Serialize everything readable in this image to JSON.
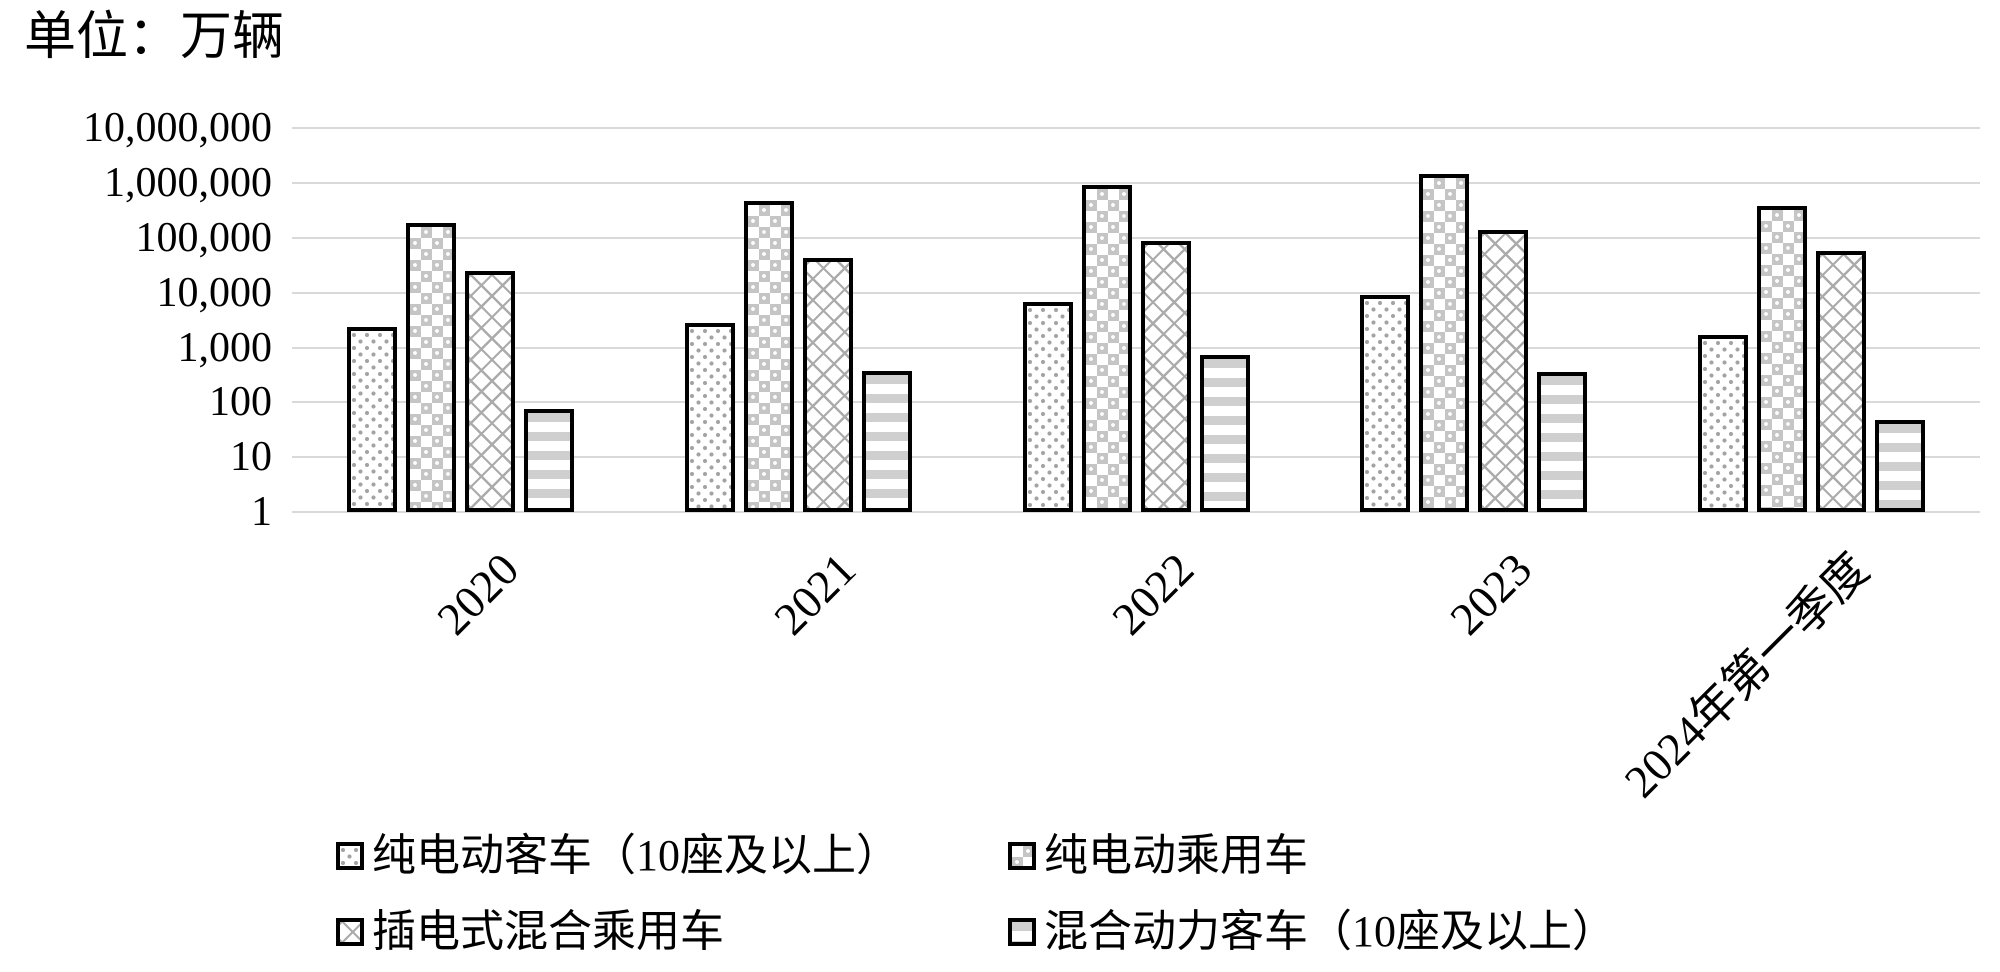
{
  "title": "单位：万辆",
  "chart_data": {
    "type": "bar",
    "scale": "log",
    "title": "单位：万辆",
    "xlabel": "",
    "ylabel": "",
    "grid": true,
    "legend_position": "bottom",
    "ylim": [
      1,
      10000000
    ],
    "y_ticks": [
      "10,000,000",
      "1,000,000",
      "100,000",
      "10,000",
      "1,000",
      "100",
      "10",
      "1"
    ],
    "categories": [
      "2020",
      "2021",
      "2022",
      "2023",
      "2024年第一季度"
    ],
    "series": [
      {
        "name": "纯电动客车（10座及以上）",
        "pattern": "dots",
        "values": [
          2400,
          2800,
          6800,
          9200,
          1700
        ]
      },
      {
        "name": "纯电动乘用车",
        "pattern": "checker",
        "values": [
          190000,
          480000,
          930000,
          1500000,
          380000
        ]
      },
      {
        "name": "插电式混合乘用车",
        "pattern": "diamond",
        "values": [
          25000,
          43000,
          90000,
          140000,
          57000
        ]
      },
      {
        "name": "混合动力客车（10座及以上）",
        "pattern": "hstripes",
        "values": [
          75,
          370,
          730,
          360,
          48
        ]
      }
    ]
  }
}
